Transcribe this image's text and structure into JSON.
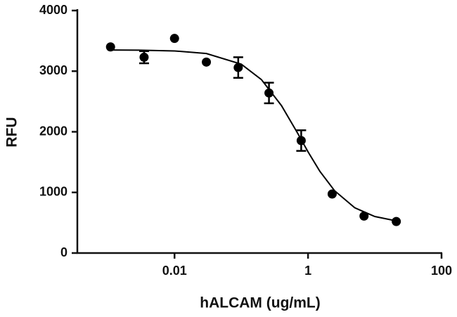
{
  "chart_data": {
    "type": "scatter",
    "x_label": "hALCAM (ug/mL)",
    "y_label": "RFU",
    "x_log": true,
    "xlim": [
      0.00035,
      100
    ],
    "xticks": [
      0.01,
      1,
      100
    ],
    "ylim": [
      0,
      4000
    ],
    "yticks": [
      0,
      1000,
      2000,
      3000,
      4000
    ],
    "series": [
      {
        "color": "#000000",
        "x": [
          0.0011,
          0.0035,
          0.01,
          0.03,
          0.09,
          0.26,
          0.79,
          2.3,
          6.9,
          21
        ],
        "values": [
          3400,
          3230,
          3540,
          3150,
          3060,
          2640,
          1855,
          974,
          610,
          520
        ],
        "errors": [
          null,
          100,
          null,
          null,
          170,
          170,
          170,
          null,
          null,
          null
        ]
      }
    ],
    "fit": {
      "color": "#000000",
      "x": [
        0.001,
        0.003,
        0.01,
        0.03,
        0.1,
        0.2,
        0.4,
        0.7,
        1,
        1.5,
        2.5,
        5,
        10,
        20
      ],
      "values": [
        3349,
        3346,
        3334,
        3291,
        3115,
        2862,
        2432,
        1975,
        1669,
        1350,
        1028,
        747,
        603,
        535
      ]
    }
  }
}
